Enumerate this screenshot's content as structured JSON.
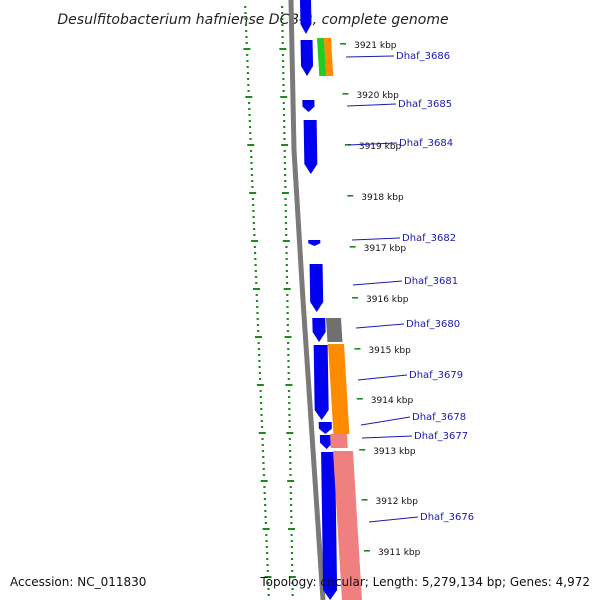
{
  "title": "Desulfitobacterium hafniense DCB-2, complete genome",
  "footer": {
    "accession": "Accession: NC_011830",
    "summary": "Topology: circular; Length: 5,279,134 bp; Genes: 4,972"
  },
  "scale_labels": [
    "3921 kbp",
    "3920 kbp",
    "3919 kbp",
    "3918 kbp",
    "3917 kbp",
    "3916 kbp",
    "3915 kbp",
    "3914 kbp",
    "3913 kbp",
    "3912 kbp",
    "3911 kbp"
  ],
  "gene_labels": [
    "Dhaf_3686",
    "Dhaf_3685",
    "Dhaf_3684",
    "Dhaf_3682",
    "Dhaf_3681",
    "Dhaf_3680",
    "Dhaf_3679",
    "Dhaf_3678",
    "Dhaf_3677",
    "Dhaf_3676"
  ],
  "colors": {
    "forward_cds": "#0000ee",
    "reverse_cds": "#707070",
    "orange_feature": "#ff8c00",
    "green_feature": "#22cc22",
    "pink_feature": "#f08080",
    "label": "#1a1ab0",
    "gc_ticks": "#1e8a1e",
    "backbone": "#7a7a7a"
  }
}
